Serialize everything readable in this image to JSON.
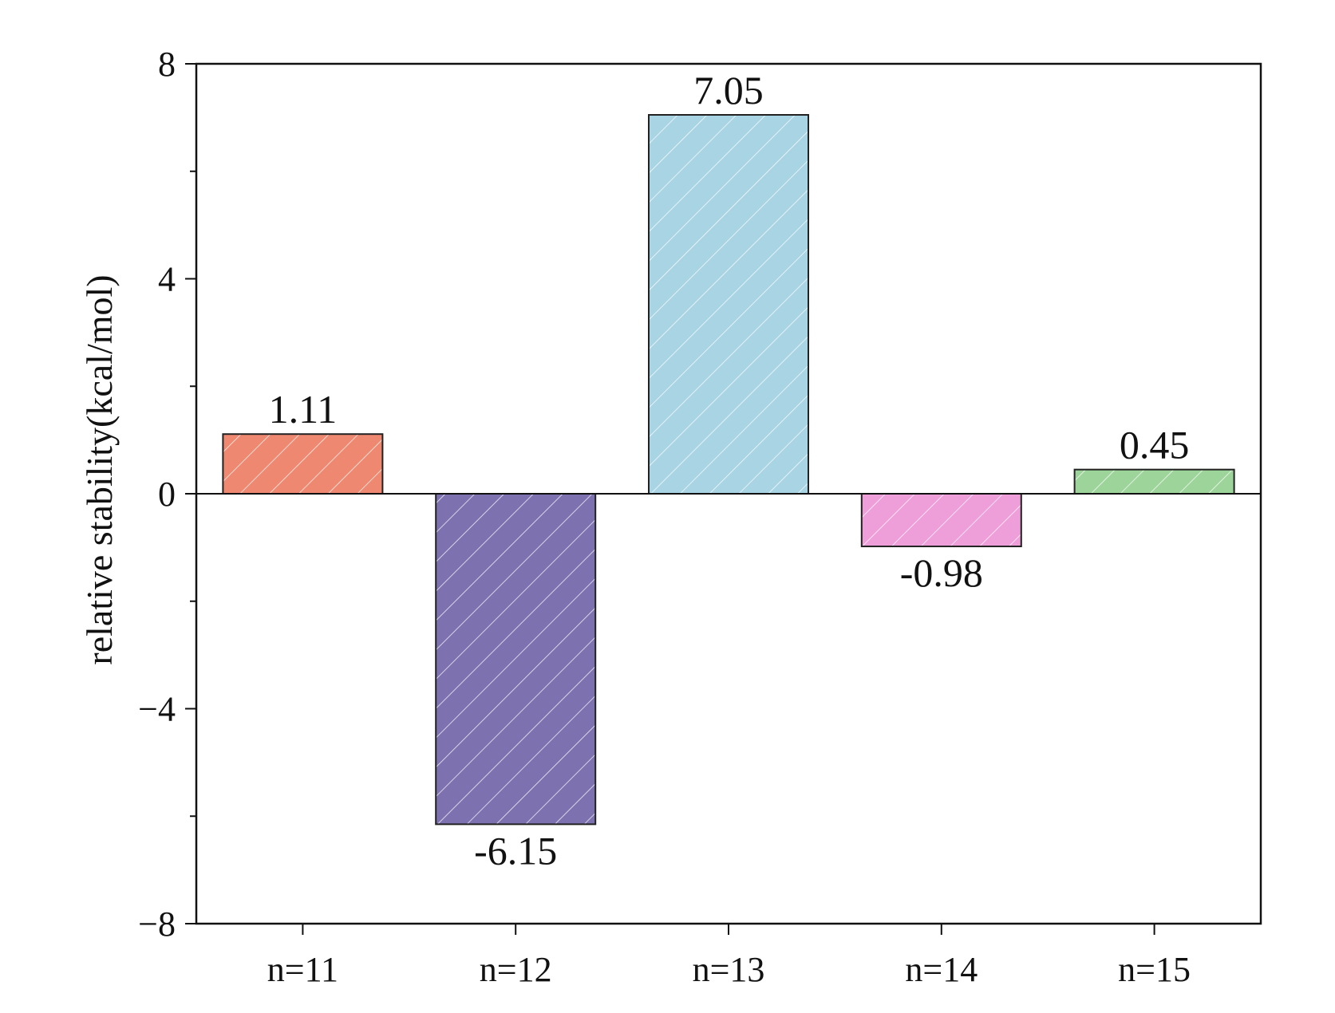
{
  "chart_data": {
    "type": "bar",
    "title": "",
    "xlabel": "",
    "ylabel": "relative stability(kcal/mol)",
    "categories": [
      "n=11",
      "n=12",
      "n=13",
      "n=14",
      "n=15"
    ],
    "values": [
      1.11,
      -6.15,
      7.05,
      -0.98,
      0.45
    ],
    "value_labels": [
      "1.11",
      "-6.15",
      "7.05",
      "-0.98",
      "0.45"
    ],
    "colors": [
      "#EE8870",
      "#7E71B0",
      "#A8D4E4",
      "#EE9ED8",
      "#9DD49A"
    ],
    "fill_pattern": "diagonal-hatch-white",
    "ylim": [
      -8,
      8
    ],
    "yticks": [
      -8,
      -4,
      0,
      4,
      8
    ],
    "ytick_labels": [
      "−8",
      "−4",
      "0",
      "4",
      "8"
    ],
    "minor_ytick_step": 2,
    "grid": false,
    "legend": "none",
    "zero_line": true
  }
}
